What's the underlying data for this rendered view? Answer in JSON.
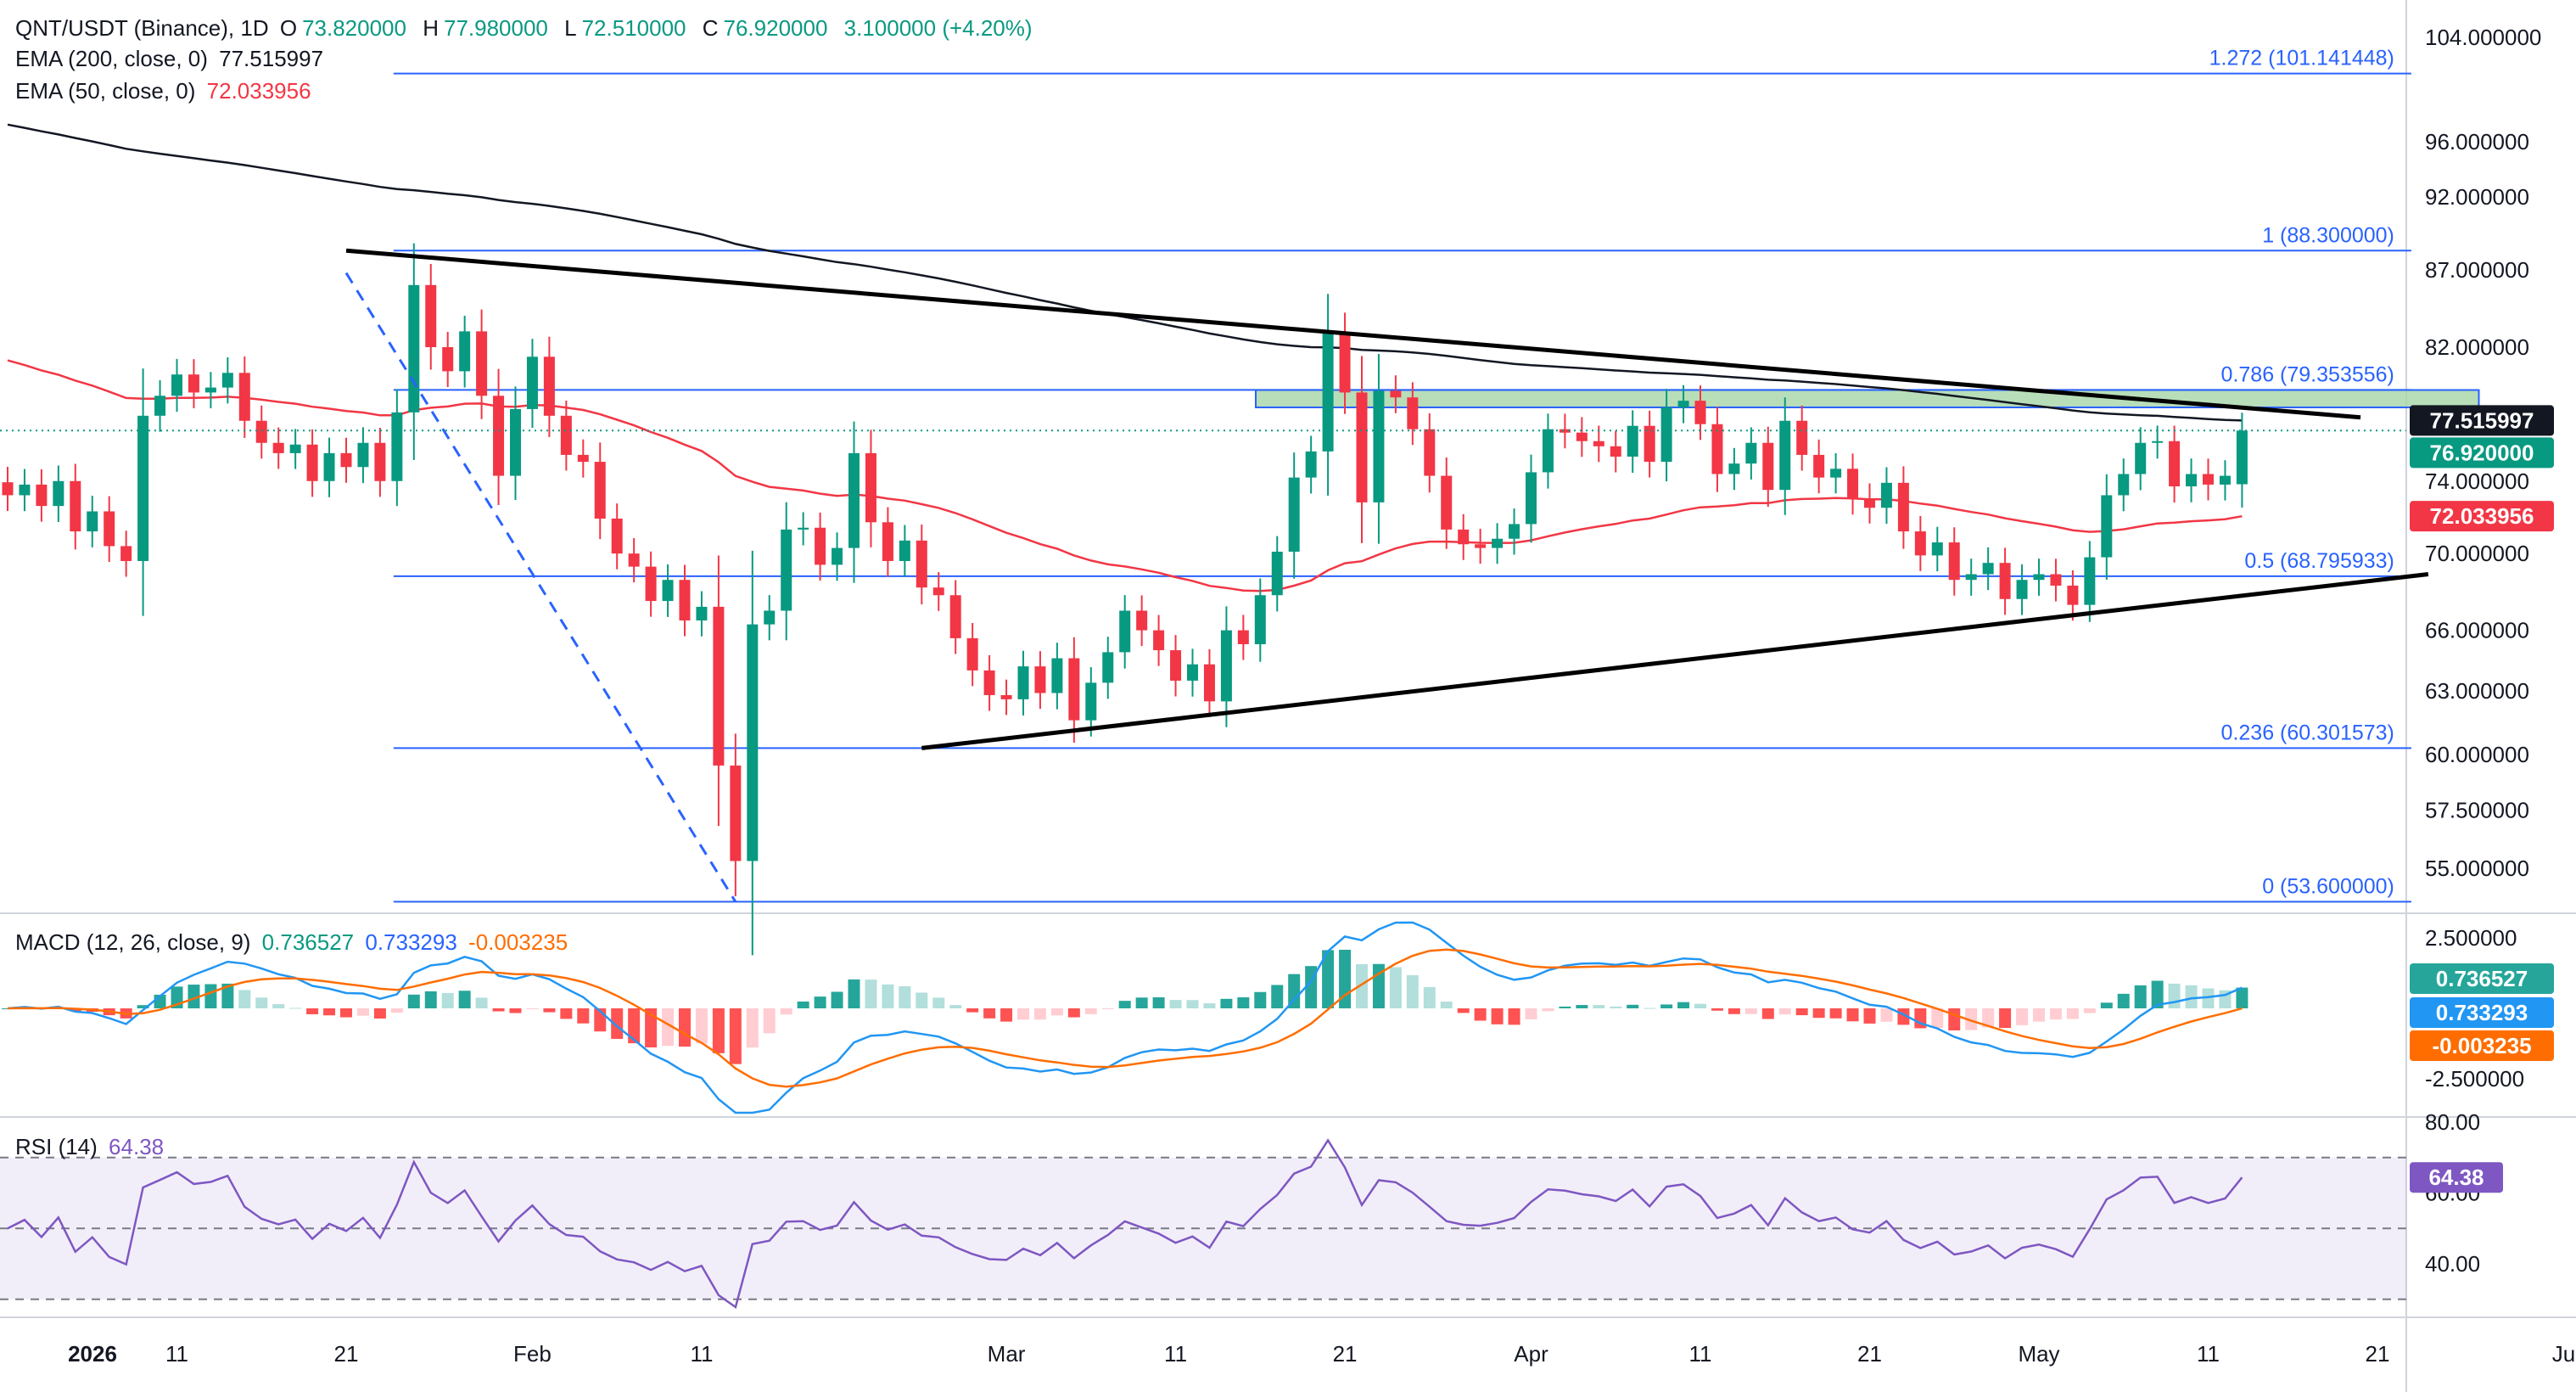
{
  "header": {
    "symbol": "QNT/USDT (Binance), 1D",
    "open_label": "O",
    "open": "73.820000",
    "high_label": "H",
    "high": "77.980000",
    "low_label": "L",
    "low": "72.510000",
    "close_label": "C",
    "close": "76.920000",
    "change": "3.100000 (+4.20%)"
  },
  "indicators": {
    "ema200": {
      "label": "EMA (200, close, 0)",
      "value": "77.515997",
      "color": "#131722"
    },
    "ema50": {
      "label": "EMA (50, close, 0)",
      "value": "72.033956",
      "color": "#f23645"
    },
    "macd": {
      "label": "MACD (12, 26, close, 9)",
      "hist": "0.736527",
      "macd": "0.733293",
      "signal": "-0.003235"
    },
    "rsi": {
      "label": "RSI (14)",
      "value": "64.38"
    }
  },
  "colors": {
    "up": "#089981",
    "down": "#f23645",
    "fib": "#2962ff",
    "macd": "#2196f3",
    "signal": "#ff6d00",
    "rsi": "#7e57c2",
    "zone": "#a5d6a7"
  },
  "chart_data": {
    "type": "candlestick",
    "price_axis": {
      "ticks": [
        "104.000000",
        "96.000000",
        "92.000000",
        "87.000000",
        "82.000000",
        "74.000000",
        "70.000000",
        "66.000000",
        "63.000000",
        "60.000000",
        "57.500000",
        "55.000000"
      ],
      "log_scale": true
    },
    "price_badges": [
      {
        "value": "77.515997",
        "color": "#131722"
      },
      {
        "value": "76.920000",
        "color": "#089981"
      },
      {
        "value": "72.033956",
        "color": "#f23645"
      }
    ],
    "fib_levels": [
      {
        "label": "1.272 (101.141448)",
        "value": 101.141448
      },
      {
        "label": "1 (88.300000)",
        "value": 88.3
      },
      {
        "label": "0.786 (79.353556)",
        "value": 79.353556
      },
      {
        "label": "0.5 (68.795933)",
        "value": 68.795933
      },
      {
        "label": "0.236 (60.301573)",
        "value": 60.301573
      },
      {
        "label": "0 (53.600000)",
        "value": 53.6
      }
    ],
    "time_axis": {
      "labels": [
        {
          "text": "2026",
          "i": 0
        },
        {
          "text": "11",
          "i": 10
        },
        {
          "text": "21",
          "i": 20
        },
        {
          "text": "Feb",
          "i": 31
        },
        {
          "text": "11",
          "i": 41
        },
        {
          "text": "Mar",
          "i": 59
        },
        {
          "text": "11",
          "i": 69
        },
        {
          "text": "21",
          "i": 79
        },
        {
          "text": "Apr",
          "i": 90
        },
        {
          "text": "11",
          "i": 100
        },
        {
          "text": "21",
          "i": 110
        },
        {
          "text": "May",
          "i": 120
        },
        {
          "text": "11",
          "i": 130
        },
        {
          "text": "21",
          "i": 140
        },
        {
          "text": "Ju",
          "i": 151
        }
      ]
    },
    "close_series": [
      73.2,
      73.8,
      72.6,
      74.0,
      71.2,
      72.3,
      70.4,
      69.6,
      77.8,
      79.0,
      80.3,
      79.2,
      79.5,
      80.4,
      77.5,
      76.2,
      75.6,
      76.1,
      74.0,
      75.6,
      74.8,
      76.2,
      74.0,
      78.0,
      86.0,
      82.0,
      80.5,
      83.0,
      79.0,
      74.3,
      78.2,
      81.4,
      77.8,
      75.5,
      75.1,
      71.9,
      70.0,
      69.3,
      67.5,
      68.6,
      66.5,
      67.2,
      59.5,
      55.3,
      66.3,
      67.0,
      71.3,
      71.4,
      69.4,
      70.3,
      75.6,
      71.7,
      69.6,
      70.7,
      68.2,
      67.8,
      65.6,
      64.0,
      62.8,
      62.6,
      64.2,
      62.9,
      64.6,
      61.6,
      63.4,
      64.9,
      67.0,
      66.0,
      65.0,
      63.5,
      64.3,
      62.5,
      66.0,
      65.3,
      67.8,
      70.1,
      74.2,
      75.7,
      82.9,
      79.2,
      72.8,
      79.3,
      78.9,
      77.0,
      74.3,
      71.3,
      70.5,
      70.3,
      70.8,
      71.6,
      74.5,
      77.0,
      76.8,
      76.3,
      76.0,
      75.4,
      77.2,
      75.1,
      78.3,
      78.7,
      77.3,
      74.4,
      75.0,
      76.2,
      73.5,
      77.5,
      75.5,
      74.2,
      74.7,
      73.0,
      72.5,
      73.9,
      71.2,
      69.9,
      70.6,
      68.6,
      68.9,
      69.5,
      67.6,
      68.6,
      68.9,
      68.3,
      67.3,
      69.8,
      73.2,
      74.4,
      76.2,
      76.3,
      73.7,
      74.4,
      73.8,
      74.3,
      76.92
    ],
    "ema200_current": 77.515997,
    "ema50_current": 72.033956,
    "macd_axis": {
      "ticks": [
        "2.500000",
        "-2.500000"
      ]
    },
    "macd_current": {
      "histogram": 0.736527,
      "macd": 0.733293,
      "signal": -0.003235
    },
    "rsi_axis": {
      "ticks": [
        "80.00",
        "60.00",
        "40.00"
      ],
      "bands": [
        70,
        30
      ],
      "mid": 50
    },
    "rsi_current": 64.38,
    "trendlines": [
      {
        "name": "descending",
        "from": {
          "i": 20,
          "price": 88.3
        },
        "to": {
          "i": 139,
          "price": 77.7
        }
      },
      {
        "name": "ascending",
        "from": {
          "i": 54,
          "price": 60.3
        },
        "to": {
          "i": 143,
          "price": 68.9
        }
      },
      {
        "name": "wave",
        "from": {
          "i": 20,
          "price": 86.8
        },
        "to": {
          "i": 43,
          "price": 53.6
        }
      }
    ],
    "resistance_zone": {
      "from_i": 68,
      "to_i": 150,
      "low": 78.3,
      "high": 79.35
    }
  }
}
